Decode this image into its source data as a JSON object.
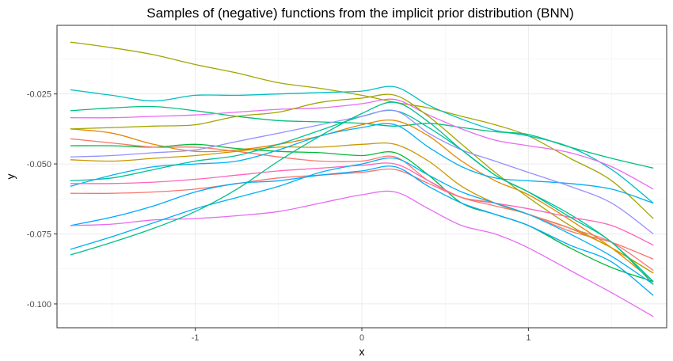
{
  "chart_data": {
    "type": "line",
    "title": "Samples of (negative) functions from the implicit prior distribution (BNN)",
    "xlabel": "x",
    "ylabel": "y",
    "xlim": [
      -1.83,
      1.83
    ],
    "ylim": [
      -0.1085,
      -0.0005
    ],
    "x_ticks": [
      -1,
      0,
      1
    ],
    "x_tick_labels": [
      "-1",
      "0",
      "1"
    ],
    "y_ticks": [
      -0.1,
      -0.075,
      -0.05,
      -0.025
    ],
    "y_tick_labels": [
      "-0.100",
      "-0.075",
      "-0.050",
      "-0.025"
    ],
    "grid": true,
    "legend": "none",
    "x": [
      -1.75,
      -1.5,
      -1.25,
      -1.0,
      -0.75,
      -0.5,
      -0.25,
      0.0,
      0.2,
      0.4,
      0.6,
      0.8,
      1.0,
      1.25,
      1.5,
      1.75
    ],
    "series": [
      {
        "color": "#A3A500",
        "values": [
          -0.0065,
          -0.0085,
          -0.011,
          -0.0145,
          -0.0175,
          -0.021,
          -0.023,
          -0.0255,
          -0.028,
          -0.03,
          -0.033,
          -0.036,
          -0.04,
          -0.048,
          -0.056,
          -0.0695
        ]
      },
      {
        "color": "#00BFC4",
        "values": [
          -0.0235,
          -0.0255,
          -0.0275,
          -0.0255,
          -0.0255,
          -0.025,
          -0.0245,
          -0.024,
          -0.0225,
          -0.029,
          -0.034,
          -0.038,
          -0.04,
          -0.044,
          -0.052,
          -0.064
        ]
      },
      {
        "color": "#00BF7D",
        "values": [
          -0.031,
          -0.03,
          -0.0295,
          -0.031,
          -0.033,
          -0.0345,
          -0.035,
          -0.0355,
          -0.0365,
          -0.0355,
          -0.037,
          -0.0385,
          -0.0395,
          -0.044,
          -0.048,
          -0.0515
        ]
      },
      {
        "color": "#E76BF3",
        "values": [
          -0.0335,
          -0.0335,
          -0.033,
          -0.0325,
          -0.0315,
          -0.0305,
          -0.03,
          -0.0285,
          -0.027,
          -0.0325,
          -0.0375,
          -0.0415,
          -0.0435,
          -0.046,
          -0.051,
          -0.059
        ]
      },
      {
        "color": "#E58700",
        "values": [
          -0.0375,
          -0.039,
          -0.043,
          -0.0455,
          -0.045,
          -0.043,
          -0.04,
          -0.036,
          -0.0345,
          -0.04,
          -0.049,
          -0.056,
          -0.061,
          -0.07,
          -0.08,
          -0.092
        ]
      },
      {
        "color": "#A3A500",
        "values": [
          -0.0375,
          -0.037,
          -0.0365,
          -0.036,
          -0.033,
          -0.0315,
          -0.028,
          -0.0265,
          -0.0255,
          -0.033,
          -0.043,
          -0.053,
          -0.062,
          -0.072,
          -0.08,
          -0.089
        ]
      },
      {
        "color": "#00BA38",
        "values": [
          -0.0435,
          -0.0435,
          -0.044,
          -0.043,
          -0.0445,
          -0.0455,
          -0.046,
          -0.047,
          -0.046,
          -0.054,
          -0.064,
          -0.068,
          -0.072,
          -0.08,
          -0.087,
          -0.092
        ]
      },
      {
        "color": "#F8766D",
        "values": [
          -0.041,
          -0.0425,
          -0.044,
          -0.044,
          -0.0455,
          -0.0475,
          -0.049,
          -0.049,
          -0.0475,
          -0.056,
          -0.062,
          -0.065,
          -0.068,
          -0.074,
          -0.078,
          -0.084
        ]
      },
      {
        "color": "#C99800",
        "values": [
          -0.0485,
          -0.049,
          -0.048,
          -0.047,
          -0.0455,
          -0.044,
          -0.044,
          -0.043,
          -0.043,
          -0.049,
          -0.058,
          -0.064,
          -0.068,
          -0.073,
          -0.08,
          -0.089
        ]
      },
      {
        "color": "#00B0F6",
        "values": [
          -0.058,
          -0.054,
          -0.051,
          -0.05,
          -0.049,
          -0.045,
          -0.04,
          -0.037,
          -0.036,
          -0.044,
          -0.051,
          -0.055,
          -0.056,
          -0.057,
          -0.059,
          -0.064
        ]
      },
      {
        "color": "#00C19A",
        "values": [
          -0.056,
          -0.055,
          -0.052,
          -0.049,
          -0.047,
          -0.043,
          -0.038,
          -0.033,
          -0.031,
          -0.037,
          -0.045,
          -0.054,
          -0.06,
          -0.068,
          -0.078,
          -0.092
        ]
      },
      {
        "color": "#9590FF",
        "values": [
          -0.0475,
          -0.047,
          -0.046,
          -0.045,
          -0.042,
          -0.039,
          -0.036,
          -0.033,
          -0.031,
          -0.039,
          -0.045,
          -0.049,
          -0.053,
          -0.058,
          -0.064,
          -0.075
        ]
      },
      {
        "color": "#FF62BC",
        "values": [
          -0.057,
          -0.057,
          -0.0565,
          -0.0555,
          -0.054,
          -0.0525,
          -0.0515,
          -0.0505,
          -0.05,
          -0.056,
          -0.062,
          -0.064,
          -0.066,
          -0.069,
          -0.072,
          -0.079
        ]
      },
      {
        "color": "#F8766D",
        "values": [
          -0.0605,
          -0.0605,
          -0.06,
          -0.059,
          -0.057,
          -0.055,
          -0.054,
          -0.053,
          -0.052,
          -0.057,
          -0.062,
          -0.064,
          -0.068,
          -0.073,
          -0.078,
          -0.088
        ]
      },
      {
        "color": "#00A9FF",
        "values": [
          -0.072,
          -0.069,
          -0.065,
          -0.06,
          -0.057,
          -0.056,
          -0.054,
          -0.0525,
          -0.051,
          -0.058,
          -0.064,
          -0.068,
          -0.072,
          -0.079,
          -0.085,
          -0.097
        ]
      },
      {
        "color": "#E76BF3",
        "values": [
          -0.072,
          -0.0715,
          -0.07,
          -0.0695,
          -0.0685,
          -0.067,
          -0.064,
          -0.061,
          -0.06,
          -0.066,
          -0.072,
          -0.075,
          -0.08,
          -0.088,
          -0.096,
          -0.1045
        ]
      },
      {
        "color": "#00B0F6",
        "values": [
          -0.0805,
          -0.076,
          -0.071,
          -0.066,
          -0.062,
          -0.058,
          -0.053,
          -0.05,
          -0.048,
          -0.054,
          -0.06,
          -0.064,
          -0.068,
          -0.075,
          -0.083,
          -0.093
        ]
      },
      {
        "color": "#00C08B",
        "values": [
          -0.0825,
          -0.078,
          -0.073,
          -0.067,
          -0.059,
          -0.049,
          -0.04,
          -0.032,
          -0.028,
          -0.035,
          -0.045,
          -0.054,
          -0.06,
          -0.069,
          -0.078,
          -0.093
        ]
      }
    ]
  }
}
